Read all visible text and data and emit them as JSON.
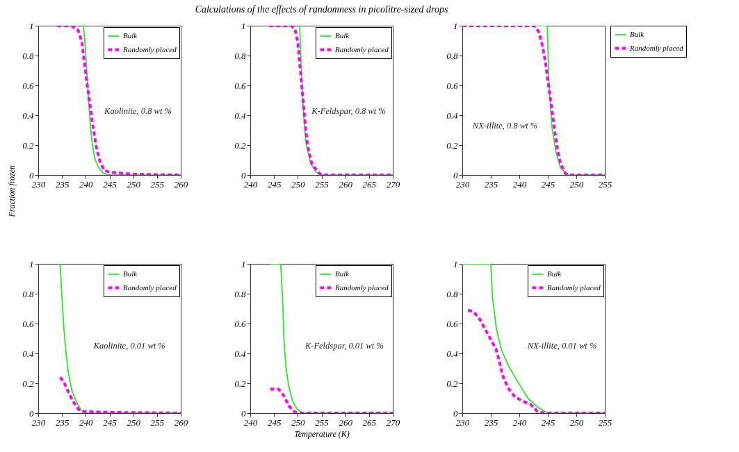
{
  "chart_data": [
    {
      "type": "line",
      "ylabel": "Fraction frozen",
      "annotations": [
        "Kaolinite, 0.8 wt %"
      ],
      "xlim": [
        230,
        260
      ],
      "xticks": [
        230,
        235,
        240,
        245,
        250,
        255,
        260
      ],
      "ylim": [
        0,
        1
      ],
      "yticks": [
        0,
        0.2,
        0.4,
        0.6,
        0.8,
        1
      ],
      "legend": "top right",
      "series": [
        {
          "name": "Bulk",
          "color": "#22ee22",
          "line_style": "solid",
          "x": [
            239.5,
            239.8,
            240.1,
            240.4,
            240.7,
            241,
            241.4,
            242,
            242.7,
            243.7,
            244.5,
            260
          ],
          "values": [
            1,
            0.9,
            0.75,
            0.6,
            0.45,
            0.32,
            0.2,
            0.1,
            0.05,
            0.015,
            0,
            0
          ]
        },
        {
          "name": "Randomly placed",
          "color": "#ff00ff",
          "line_style": "dashed",
          "x": [
            234,
            237,
            238.4,
            239.2,
            239.7,
            240.3,
            240.9,
            241.5,
            242.2,
            243,
            243.9,
            244.9,
            248,
            250,
            260
          ],
          "values": [
            1,
            1,
            0.97,
            0.89,
            0.75,
            0.61,
            0.47,
            0.33,
            0.19,
            0.09,
            0.03,
            0.02,
            0.01,
            0.005,
            0
          ]
        }
      ]
    },
    {
      "type": "line",
      "title": "Calculations of the effects of randomness in picolitre-sized drops",
      "annotations": [
        "K-Feldspar, 0.8 wt %"
      ],
      "xlim": [
        240,
        270
      ],
      "xticks": [
        240,
        245,
        250,
        255,
        260,
        265,
        270
      ],
      "ylim": [
        0,
        1
      ],
      "yticks": [
        0,
        0.2,
        0.4,
        0.6,
        0.8,
        1
      ],
      "legend": "top right",
      "series": [
        {
          "name": "Bulk",
          "color": "#22ee22",
          "line_style": "solid",
          "x": [
            250.4,
            250.7,
            251.1,
            251.7,
            252.7,
            253.7,
            254.7,
            270
          ],
          "values": [
            1,
            0.75,
            0.47,
            0.22,
            0.08,
            0.025,
            0,
            0
          ]
        },
        {
          "name": "Randomly placed",
          "color": "#ff00ff",
          "line_style": "dashed",
          "x": [
            244,
            248.6,
            249.4,
            250,
            250.4,
            250.8,
            251.2,
            251.6,
            252.1,
            252.9,
            254.1,
            254.9,
            270
          ],
          "values": [
            1,
            1,
            0.98,
            0.89,
            0.75,
            0.61,
            0.47,
            0.33,
            0.19,
            0.08,
            0.025,
            0,
            0
          ]
        }
      ]
    },
    {
      "type": "line",
      "annotations": [
        "NX-illite, 0.8 wt %"
      ],
      "xlim": [
        230,
        255
      ],
      "xticks": [
        230,
        235,
        240,
        245,
        250,
        255
      ],
      "ylim": [
        0,
        1
      ],
      "yticks": [
        0,
        0.2,
        0.4,
        0.6,
        0.8,
        1
      ],
      "legend": "right",
      "series": [
        {
          "name": "Bulk",
          "color": "#22ee22",
          "line_style": "solid",
          "x": [
            230,
            244.9,
            245.2,
            245.7,
            246.4,
            247.2,
            248.5,
            255
          ],
          "values": [
            1,
            1,
            0.61,
            0.33,
            0.16,
            0.05,
            0,
            0
          ]
        },
        {
          "name": "Randomly placed",
          "color": "#ff00ff",
          "line_style": "dashed",
          "x": [
            230,
            242.6,
            243.4,
            244.1,
            244.6,
            245.1,
            245.6,
            246.1,
            246.6,
            247.2,
            248.1,
            248.7,
            255
          ],
          "values": [
            1,
            1,
            0.96,
            0.86,
            0.75,
            0.61,
            0.47,
            0.33,
            0.19,
            0.08,
            0.01,
            0,
            0
          ]
        }
      ]
    },
    {
      "type": "line",
      "annotations": [
        "Kaolinite, 0.01 wt %"
      ],
      "xlim": [
        230,
        260
      ],
      "xticks": [
        230,
        235,
        240,
        245,
        250,
        255,
        260
      ],
      "ylim": [
        0,
        1
      ],
      "yticks": [
        0,
        0.2,
        0.4,
        0.6,
        0.8,
        1
      ],
      "legend": "top right",
      "series": [
        {
          "name": "Bulk",
          "color": "#22ee22",
          "line_style": "solid",
          "x": [
            234.6,
            235,
            235.4,
            235.8,
            236.3,
            237.1,
            238.1,
            239,
            240,
            260
          ],
          "values": [
            1,
            0.77,
            0.57,
            0.42,
            0.28,
            0.15,
            0.07,
            0.02,
            0,
            0
          ]
        },
        {
          "name": "Randomly placed",
          "color": "#ff00ff",
          "line_style": "dashed",
          "x": [
            234.6,
            235.4,
            236.2,
            237.3,
            238.5,
            239.4,
            240.4,
            245,
            260
          ],
          "values": [
            0.24,
            0.21,
            0.15,
            0.08,
            0.025,
            0.01,
            0.01,
            0.005,
            0
          ]
        }
      ]
    },
    {
      "type": "line",
      "xlabel": "Temperature (K)",
      "annotations": [
        "K-Feldspar, 0.01 wt %"
      ],
      "xlim": [
        240,
        270
      ],
      "xticks": [
        240,
        245,
        250,
        255,
        260,
        265,
        270
      ],
      "ylim": [
        0,
        1
      ],
      "yticks": [
        0,
        0.2,
        0.4,
        0.6,
        0.8,
        1
      ],
      "legend": "top right",
      "series": [
        {
          "name": "Bulk",
          "color": "#22ee22",
          "line_style": "solid",
          "x": [
            244.2,
            246.4,
            246.8,
            247.1,
            247.5,
            248.1,
            248.9,
            249.9,
            251.1,
            270
          ],
          "values": [
            1,
            1,
            0.77,
            0.49,
            0.31,
            0.18,
            0.08,
            0.025,
            0,
            0
          ]
        },
        {
          "name": "Randomly placed",
          "color": "#ff00ff",
          "line_style": "dashed",
          "x": [
            244.2,
            246,
            247,
            248.1,
            249.3,
            250.1,
            270
          ],
          "values": [
            0.16,
            0.16,
            0.12,
            0.05,
            0.01,
            0,
            0
          ]
        }
      ]
    },
    {
      "type": "line",
      "annotations": [
        "NX-illite, 0.01 wt %"
      ],
      "xlim": [
        230,
        255
      ],
      "xticks": [
        230,
        235,
        240,
        245,
        250,
        255
      ],
      "ylim": [
        0,
        1
      ],
      "yticks": [
        0,
        0.2,
        0.4,
        0.6,
        0.8,
        1
      ],
      "legend": "top right",
      "series": [
        {
          "name": "Bulk",
          "color": "#22ee22",
          "line_style": "solid",
          "x": [
            230,
            235,
            235.3,
            236,
            236.9,
            238.2,
            239.9,
            241.5,
            243.2,
            244.5,
            245.5,
            255
          ],
          "values": [
            1,
            1,
            0.77,
            0.56,
            0.42,
            0.31,
            0.2,
            0.1,
            0.04,
            0.01,
            0,
            0
          ]
        },
        {
          "name": "Randomly placed",
          "color": "#ff00ff",
          "line_style": "dashed",
          "x": [
            231,
            231.9,
            232.9,
            233.9,
            234.9,
            235.9,
            236.5,
            237,
            238,
            239.2,
            240.6,
            241.9,
            242.5,
            243.2,
            244.5,
            255
          ],
          "values": [
            0.69,
            0.68,
            0.64,
            0.57,
            0.5,
            0.43,
            0.35,
            0.26,
            0.17,
            0.11,
            0.08,
            0.06,
            0.04,
            0.01,
            0,
            0
          ]
        }
      ]
    }
  ]
}
